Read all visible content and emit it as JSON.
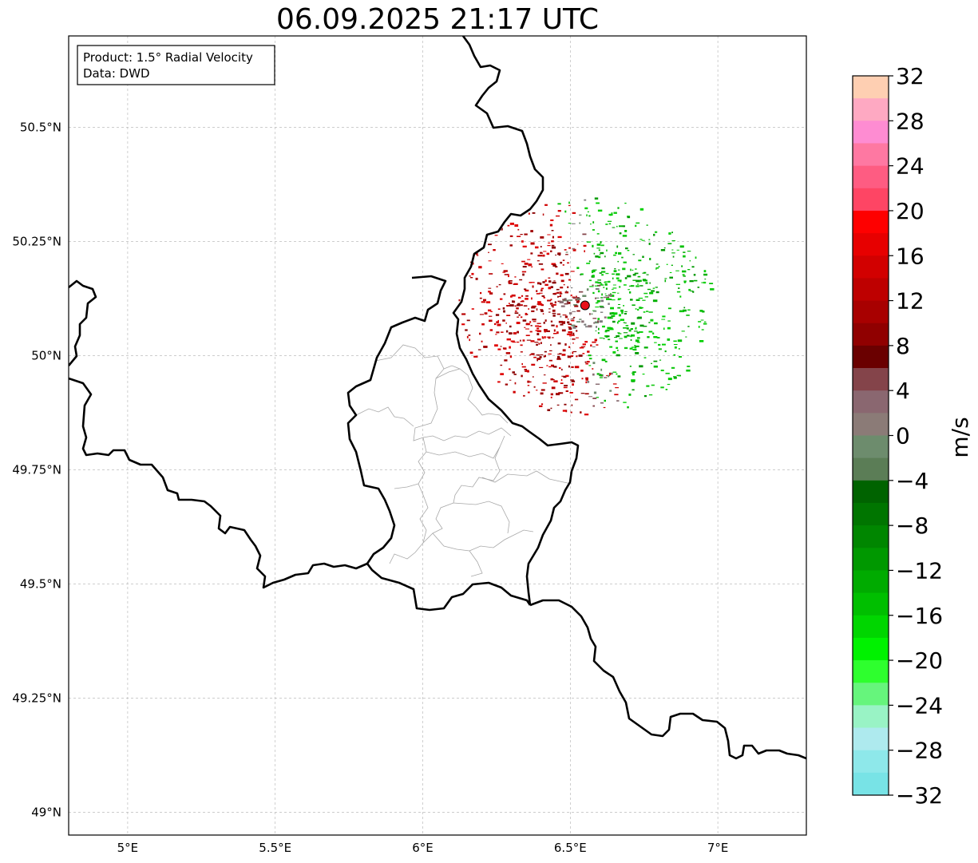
{
  "title": "06.09.2025 21:17 UTC",
  "info_box": {
    "product": "Product: 1.5° Radial Velocity",
    "source": "Data: DWD"
  },
  "map": {
    "lon_range": [
      4.8,
      7.3
    ],
    "lat_range": [
      48.95,
      50.7
    ],
    "lon_ticks": [
      {
        "value": 5.0,
        "label": "5°E"
      },
      {
        "value": 5.5,
        "label": "5.5°E"
      },
      {
        "value": 6.0,
        "label": "6°E"
      },
      {
        "value": 6.5,
        "label": "6.5°E"
      },
      {
        "value": 7.0,
        "label": "7°E"
      }
    ],
    "lat_ticks": [
      {
        "value": 49.0,
        "label": "49°N"
      },
      {
        "value": 49.25,
        "label": "49.25°N"
      },
      {
        "value": 49.5,
        "label": "49.5°N"
      },
      {
        "value": 49.75,
        "label": "49.75°N"
      },
      {
        "value": 50.0,
        "label": "50°N"
      },
      {
        "value": 50.25,
        "label": "50.25°N"
      },
      {
        "value": 50.5,
        "label": "50.5°N"
      }
    ],
    "radar_site": {
      "lon": 6.55,
      "lat": 50.11,
      "color": "#e8101a"
    },
    "grid": true
  },
  "colorbar": {
    "unit": "m/s",
    "min": -32,
    "max": 32,
    "tick_labels": [
      "32",
      "28",
      "24",
      "20",
      "16",
      "12",
      "8",
      "4",
      "0",
      "−4",
      "−8",
      "−12",
      "−16",
      "−20",
      "−24",
      "−28",
      "−32"
    ],
    "colors_top_to_bottom": [
      "#fecfb2",
      "#fea9c2",
      "#fe8cd2",
      "#fe78a2",
      "#fe5c82",
      "#fe4564",
      "#fe0000",
      "#e70000",
      "#d20000",
      "#be0000",
      "#a80000",
      "#900000",
      "#6a0000",
      "#84444a",
      "#8a6770",
      "#8b7b77",
      "#6d8c6d",
      "#5b7d56",
      "#006300",
      "#007500",
      "#008600",
      "#009800",
      "#00ab00",
      "#00bf00",
      "#00d600",
      "#00f200",
      "#2eff2e",
      "#66f57c",
      "#99f3c5",
      "#aeeaee",
      "#8ee8ea",
      "#78e3e6"
    ]
  }
}
